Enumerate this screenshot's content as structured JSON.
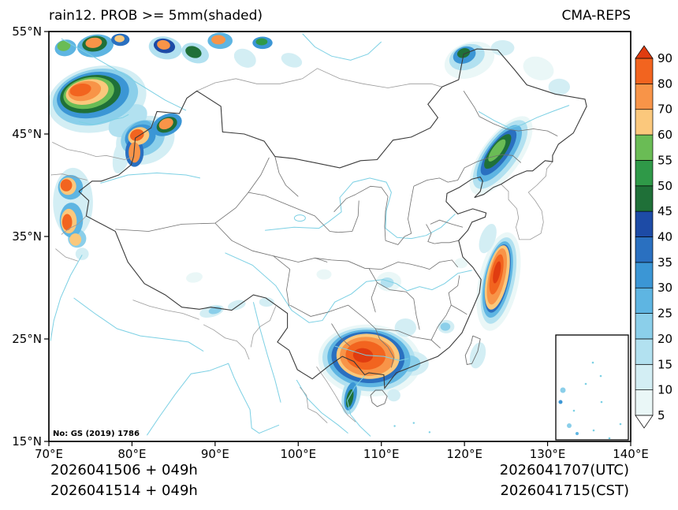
{
  "header": {
    "title": "rain12. PROB >= 5mm(shaded)",
    "source": "CMA-REPS"
  },
  "map": {
    "annotation": "No: GS (2019) 1786"
  },
  "footer": {
    "init_utc_line": "2026041506 + 049h",
    "init_cst_line": "2026041514 + 049h",
    "valid_utc_line": "2026041707(UTC)",
    "valid_cst_line": "2026041715(CST)"
  },
  "chart_data": {
    "type": "heatmap",
    "title": "rain12. PROB >= 5mm(shaded)",
    "model": "CMA-REPS",
    "variable": "12-h accumulated precipitation probability >= 5mm (shaded)",
    "units": "%",
    "init": {
      "utc": "2026041506",
      "cst": "2026041514",
      "lead": "049h"
    },
    "valid": {
      "utc": "2026041707",
      "cst": "2026041715"
    },
    "x_axis": {
      "range": [
        70,
        140
      ],
      "tick_values": [
        70,
        80,
        90,
        100,
        110,
        120,
        130,
        140
      ],
      "ticks": [
        "70°E",
        "80°E",
        "90°E",
        "100°E",
        "110°E",
        "120°E",
        "130°E",
        "140°E"
      ]
    },
    "y_axis": {
      "range": [
        15,
        55
      ],
      "tick_values": [
        15,
        25,
        35,
        45,
        55
      ],
      "ticks": [
        "15°N",
        "25°N",
        "35°N",
        "45°N",
        "55°N"
      ]
    },
    "colorbar": {
      "levels": [
        5,
        10,
        15,
        20,
        25,
        30,
        35,
        40,
        45,
        50,
        55,
        60,
        70,
        80,
        90
      ],
      "palette": {
        "5": "#eaf7f7",
        "10": "#d3eef4",
        "15": "#b2e1f0",
        "20": "#8bcfea",
        "25": "#5eb5e2",
        "30": "#3b96d5",
        "35": "#2a70c0",
        "40": "#1d4ba6",
        "45": "#1f7038",
        "50": "#2f9948",
        "55": "#6abc55",
        "60": "#fbc87c",
        "70": "#f89448",
        "80": "#f2641f",
        "90": "#e03c10"
      },
      "under_color": "#ffffff",
      "over_color": "#e03c10"
    },
    "feature_format": [
      "lon",
      "lat",
      "radius_lon_deg",
      "radius_lat_deg",
      "rotation_deg",
      "prob_level"
    ],
    "features": [
      [
        75.8,
        48.4,
        6.0,
        3.2,
        -12,
        10
      ],
      [
        75.6,
        48.6,
        5.2,
        2.7,
        -12,
        20
      ],
      [
        75.3,
        48.8,
        4.4,
        2.2,
        -12,
        30
      ],
      [
        75.0,
        48.9,
        3.7,
        1.8,
        -12,
        45
      ],
      [
        74.8,
        49.0,
        3.1,
        1.5,
        -12,
        55
      ],
      [
        74.6,
        49.1,
        2.6,
        1.2,
        -12,
        60
      ],
      [
        74.3,
        49.2,
        2.0,
        0.95,
        -12,
        70
      ],
      [
        73.8,
        49.3,
        1.3,
        0.6,
        -12,
        80
      ],
      [
        79.5,
        46.3,
        2.6,
        1.3,
        -35,
        15
      ],
      [
        80.8,
        45.2,
        1.8,
        0.9,
        -35,
        25
      ],
      [
        78.8,
        43.0,
        1.0,
        1.9,
        15,
        10
      ],
      [
        81.6,
        44.4,
        3.6,
        2.3,
        -20,
        10
      ],
      [
        81.3,
        44.6,
        2.7,
        1.7,
        -20,
        20
      ],
      [
        81.0,
        44.7,
        1.9,
        1.2,
        -20,
        30
      ],
      [
        80.8,
        44.8,
        1.3,
        0.85,
        -20,
        60
      ],
      [
        80.6,
        44.9,
        0.85,
        0.55,
        -20,
        80
      ],
      [
        84.2,
        45.9,
        1.9,
        1.0,
        -25,
        30
      ],
      [
        84.2,
        45.9,
        1.3,
        0.7,
        -25,
        45
      ],
      [
        84.1,
        46.0,
        0.9,
        0.5,
        -25,
        70
      ],
      [
        80.3,
        43.2,
        1.1,
        1.4,
        0,
        35
      ],
      [
        80.3,
        43.2,
        0.7,
        1.0,
        0,
        70
      ],
      [
        72.9,
        38.3,
        2.4,
        3.4,
        0,
        10
      ],
      [
        72.6,
        39.8,
        1.5,
        1.2,
        0,
        25
      ],
      [
        72.3,
        39.9,
        1.0,
        0.85,
        0,
        60
      ],
      [
        72.1,
        40.0,
        0.7,
        0.6,
        0,
        80
      ],
      [
        72.7,
        36.6,
        1.4,
        1.7,
        0,
        25
      ],
      [
        72.4,
        36.5,
        0.95,
        1.2,
        0,
        60
      ],
      [
        72.2,
        36.4,
        0.6,
        0.8,
        0,
        80
      ],
      [
        73.4,
        34.8,
        1.1,
        0.9,
        0,
        20
      ],
      [
        73.2,
        34.7,
        0.7,
        0.6,
        0,
        60
      ],
      [
        74.0,
        33.3,
        0.8,
        0.6,
        0,
        10
      ],
      [
        72.0,
        53.4,
        1.3,
        0.8,
        -10,
        25
      ],
      [
        71.8,
        53.6,
        0.8,
        0.5,
        -10,
        55
      ],
      [
        75.6,
        53.6,
        2.2,
        1.1,
        -8,
        25
      ],
      [
        75.5,
        53.8,
        1.5,
        0.75,
        -8,
        45
      ],
      [
        75.4,
        53.9,
        1.0,
        0.5,
        -8,
        70
      ],
      [
        78.6,
        54.2,
        1.1,
        0.6,
        0,
        35
      ],
      [
        78.5,
        54.3,
        0.6,
        0.35,
        0,
        60
      ],
      [
        84.0,
        53.4,
        2.0,
        1.1,
        10,
        15
      ],
      [
        83.9,
        53.6,
        1.3,
        0.7,
        10,
        40
      ],
      [
        83.8,
        53.7,
        0.8,
        0.45,
        10,
        70
      ],
      [
        87.6,
        52.9,
        1.7,
        0.95,
        20,
        15
      ],
      [
        87.4,
        53.0,
        1.0,
        0.55,
        20,
        45
      ],
      [
        90.6,
        54.1,
        1.5,
        0.8,
        0,
        25
      ],
      [
        90.4,
        54.2,
        0.85,
        0.45,
        0,
        70
      ],
      [
        93.6,
        52.4,
        1.4,
        0.85,
        30,
        10
      ],
      [
        95.7,
        53.9,
        1.2,
        0.6,
        0,
        30
      ],
      [
        95.6,
        54.0,
        0.7,
        0.35,
        0,
        50
      ],
      [
        99.2,
        52.2,
        1.3,
        0.65,
        20,
        10
      ],
      [
        120.6,
        52.2,
        3.1,
        1.7,
        -20,
        5
      ],
      [
        120.3,
        52.5,
        2.2,
        1.2,
        -20,
        15
      ],
      [
        120.0,
        52.7,
        1.4,
        0.8,
        -20,
        30
      ],
      [
        119.9,
        52.9,
        0.8,
        0.45,
        -20,
        45
      ],
      [
        124.6,
        53.4,
        1.4,
        0.75,
        0,
        10
      ],
      [
        128.9,
        51.4,
        1.9,
        1.1,
        20,
        5
      ],
      [
        131.4,
        49.6,
        1.3,
        0.8,
        0,
        10
      ],
      [
        124.4,
        42.9,
        5.6,
        1.9,
        -54,
        5
      ],
      [
        124.3,
        43.0,
        4.9,
        1.6,
        -54,
        15
      ],
      [
        124.2,
        43.1,
        4.1,
        1.25,
        -54,
        25
      ],
      [
        124.1,
        43.2,
        3.3,
        0.95,
        -54,
        35
      ],
      [
        124.0,
        43.3,
        2.5,
        0.7,
        -54,
        45
      ],
      [
        123.9,
        43.4,
        1.6,
        0.45,
        -54,
        55
      ],
      [
        122.8,
        34.8,
        0.9,
        1.5,
        20,
        10
      ],
      [
        124.1,
        30.6,
        2.4,
        4.9,
        12,
        5
      ],
      [
        124.1,
        30.7,
        1.9,
        4.3,
        12,
        15
      ],
      [
        124.0,
        30.8,
        1.6,
        3.8,
        12,
        25
      ],
      [
        124.0,
        30.9,
        1.35,
        3.4,
        12,
        35
      ],
      [
        123.95,
        31.0,
        1.3,
        3.2,
        12,
        60
      ],
      [
        123.9,
        31.1,
        1.0,
        2.8,
        12,
        70
      ],
      [
        123.85,
        31.3,
        0.7,
        2.0,
        12,
        80
      ],
      [
        123.9,
        31.5,
        0.4,
        1.1,
        12,
        90
      ],
      [
        119.6,
        32.4,
        0.8,
        0.5,
        0,
        5
      ],
      [
        108.6,
        22.9,
        6.2,
        3.5,
        4,
        5
      ],
      [
        108.5,
        23.0,
        5.6,
        3.1,
        4,
        15
      ],
      [
        108.5,
        23.1,
        5.0,
        2.8,
        4,
        25
      ],
      [
        108.4,
        23.2,
        4.4,
        2.5,
        4,
        35
      ],
      [
        108.4,
        23.3,
        3.8,
        2.2,
        4,
        60
      ],
      [
        108.3,
        23.3,
        3.3,
        1.9,
        4,
        70
      ],
      [
        108.1,
        23.4,
        2.4,
        1.4,
        4,
        80
      ],
      [
        107.8,
        23.4,
        1.2,
        0.7,
        4,
        90
      ],
      [
        106.4,
        19.6,
        1.1,
        2.0,
        12,
        15
      ],
      [
        106.3,
        19.4,
        0.7,
        1.4,
        12,
        30
      ],
      [
        106.2,
        19.2,
        0.4,
        0.9,
        12,
        45
      ],
      [
        113.6,
        22.6,
        2.1,
        1.2,
        0,
        10
      ],
      [
        113.4,
        22.6,
        1.3,
        0.8,
        0,
        20
      ],
      [
        112.9,
        26.1,
        1.3,
        0.9,
        0,
        10
      ],
      [
        117.8,
        26.2,
        1.0,
        0.65,
        0,
        10
      ],
      [
        117.7,
        26.2,
        0.6,
        0.4,
        0,
        20
      ],
      [
        121.6,
        23.4,
        0.9,
        1.3,
        15,
        10
      ],
      [
        111.5,
        19.5,
        0.8,
        0.6,
        0,
        10
      ],
      [
        89.6,
        27.7,
        1.5,
        0.55,
        -15,
        10
      ],
      [
        90.0,
        27.8,
        0.8,
        0.35,
        -15,
        20
      ],
      [
        92.6,
        28.3,
        1.1,
        0.45,
        -15,
        10
      ],
      [
        96.2,
        28.6,
        0.9,
        0.45,
        0,
        10
      ],
      [
        103.1,
        31.3,
        0.9,
        0.5,
        0,
        5
      ],
      [
        110.9,
        30.6,
        1.5,
        0.95,
        0,
        5
      ],
      [
        110.7,
        30.5,
        0.8,
        0.5,
        0,
        15
      ],
      [
        87.5,
        31.0,
        1.0,
        0.5,
        -10,
        5
      ]
    ]
  }
}
